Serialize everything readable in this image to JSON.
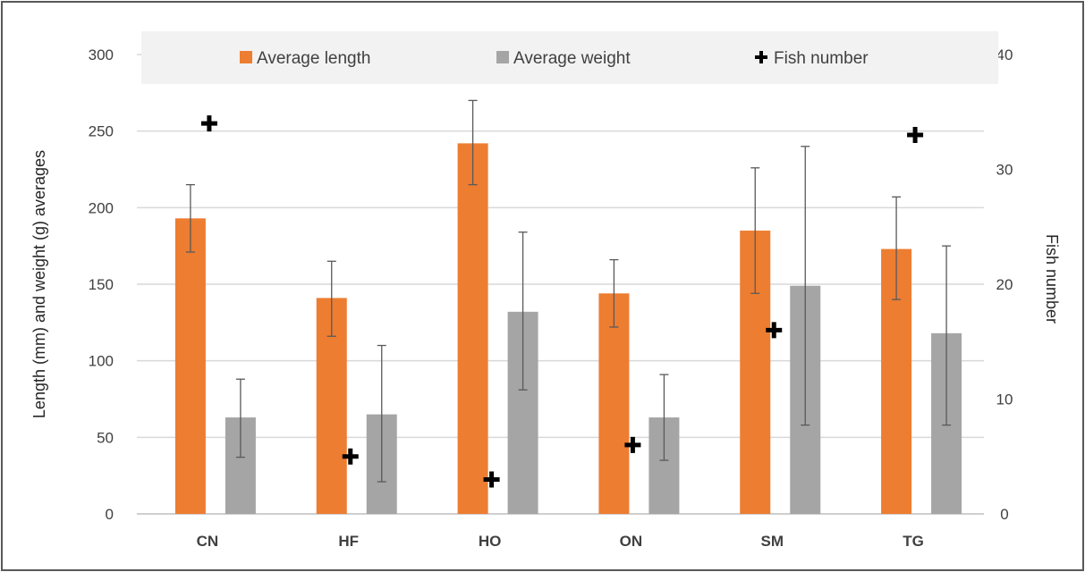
{
  "chart_data": {
    "type": "bar",
    "categories": [
      "CN",
      "HF",
      "HO",
      "ON",
      "SM",
      "TG"
    ],
    "series": [
      {
        "name": "Average length",
        "axis": "left",
        "color": "#ED7D31",
        "values": [
          193,
          141,
          242,
          144,
          185,
          173
        ],
        "error_low": [
          171,
          116,
          215,
          122,
          144,
          140
        ],
        "error_high": [
          215,
          165,
          270,
          166,
          226,
          207
        ]
      },
      {
        "name": "Average weight",
        "axis": "left",
        "color": "#A5A5A5",
        "values": [
          63,
          65,
          132,
          63,
          149,
          118
        ],
        "error_low": [
          37,
          21,
          81,
          35,
          58,
          58
        ],
        "error_high": [
          88,
          110,
          184,
          91,
          240,
          175
        ]
      },
      {
        "name": "Fish number",
        "axis": "right",
        "marker": "plus",
        "color": "#000000",
        "values": [
          34,
          5,
          3,
          6,
          16,
          33
        ]
      }
    ],
    "ylabel": "Length (mm) and weight (g) averages",
    "y2label": "Fish number",
    "ylim": [
      0,
      300
    ],
    "y2lim": [
      0,
      40
    ],
    "yticks": [
      "0",
      "50",
      "100",
      "150",
      "200",
      "250",
      "300"
    ],
    "y2ticks": [
      "0",
      "10",
      "20",
      "30",
      "40"
    ],
    "grid": true,
    "legend_position": "top"
  }
}
